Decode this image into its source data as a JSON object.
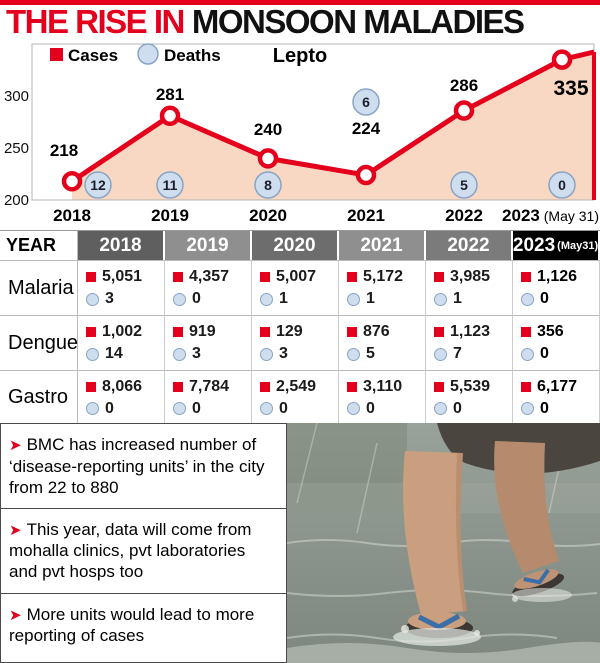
{
  "title": {
    "part1": "THE RISE IN",
    "part2": "MONSOON MALADIES"
  },
  "colors": {
    "accent_red": "#e4001c",
    "area_fill": "#f8d8c2",
    "death_circle_fill": "#cfdeee",
    "death_circle_border": "#88a4c6"
  },
  "chart_data": {
    "type": "line",
    "title": "Lepto",
    "legend": [
      {
        "label": "Cases",
        "marker": "square",
        "color": "#e4001c"
      },
      {
        "label": "Deaths",
        "marker": "circle",
        "color": "#cfdeee"
      }
    ],
    "x": [
      "2018",
      "2019",
      "2020",
      "2021",
      "2022",
      "2023"
    ],
    "x_last_suffix": " (May 31)",
    "series": [
      {
        "name": "Cases",
        "values": [
          218,
          281,
          240,
          224,
          286,
          335
        ]
      },
      {
        "name": "Deaths",
        "values": [
          12,
          11,
          8,
          6,
          5,
          0
        ]
      }
    ],
    "yticks": [
      200,
      250,
      300
    ],
    "ylim": [
      200,
      345
    ],
    "grid": false,
    "legend_position": "top-left"
  },
  "table": {
    "year_label": "YEAR",
    "years": [
      "2018",
      "2019",
      "2020",
      "2021",
      "2022",
      "2023"
    ],
    "last_year_note": "(May31)",
    "header_colors": [
      "#5f5f5f",
      "#8f8f8f",
      "#6d6d6d",
      "#8f8f8f",
      "#7b7b7b",
      "#000000"
    ],
    "rows": [
      {
        "label": "Malaria",
        "cases": [
          "5,051",
          "4,357",
          "5,007",
          "5,172",
          "3,985",
          "1,126"
        ],
        "deaths": [
          "3",
          "0",
          "1",
          "1",
          "1",
          "0"
        ]
      },
      {
        "label": "Dengue",
        "cases": [
          "1,002",
          "919",
          "129",
          "876",
          "1,123",
          "356"
        ],
        "deaths": [
          "14",
          "3",
          "3",
          "5",
          "7",
          "0"
        ]
      },
      {
        "label": "Gastro",
        "cases": [
          "8,066",
          "7,784",
          "2,549",
          "3,110",
          "5,539",
          "6,177"
        ],
        "deaths": [
          "0",
          "0",
          "0",
          "0",
          "0",
          "0"
        ]
      }
    ]
  },
  "notes": {
    "arrow": "➤",
    "items": [
      "BMC has increased number of ‘disease-reporting units’ in the city from 22 to 880",
      "This year, data will come from mohalla clinics, pvt laboratories and pvt hosps too",
      "More units would lead to more reporting of cases"
    ]
  }
}
